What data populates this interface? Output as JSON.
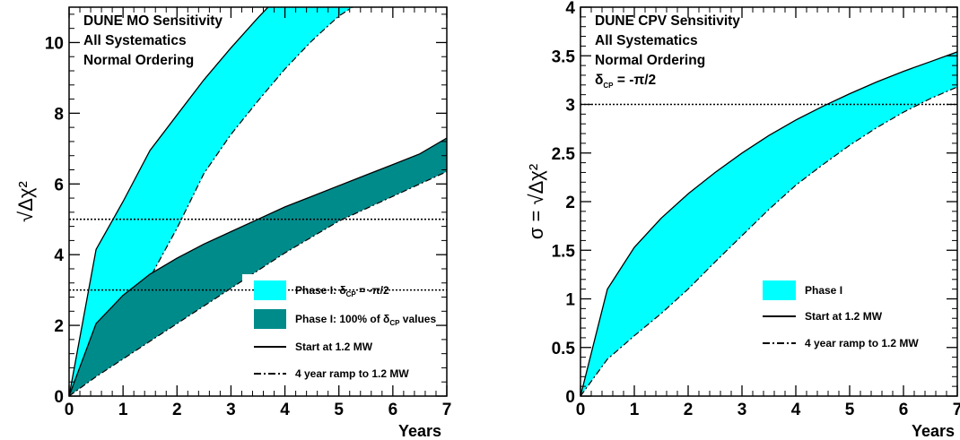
{
  "colors": {
    "phase1_deltacp": "#00ffff",
    "phase1_allcp": "#008b8b",
    "frame": "#000000"
  },
  "chart_data": [
    {
      "type": "area",
      "title_lines": [
        "DUNE MO Sensitivity",
        "All Systematics",
        "Normal Ordering"
      ],
      "xlabel": "Years",
      "ylabel": "√Δχ²",
      "xlim": [
        0,
        7
      ],
      "ylim": [
        0,
        11
      ],
      "x_ticks": [
        0,
        1,
        2,
        3,
        4,
        5,
        6,
        7
      ],
      "y_ticks": [
        0,
        2,
        4,
        6,
        8,
        10
      ],
      "reference_lines": [
        3,
        5
      ],
      "legend_position": "bottom-right",
      "legend": [
        {
          "kind": "box",
          "color_key": "phase1_deltacp",
          "text": "Phase I: δCP = -π/2",
          "main": "Phase I: δ",
          "sub": "CP",
          "rest": " = -π/2"
        },
        {
          "kind": "box",
          "color_key": "phase1_allcp",
          "text": "Phase I: 100% of δCP values",
          "main": "Phase I: 100% of δ",
          "sub": "CP",
          "rest": " values"
        },
        {
          "kind": "solid",
          "text": "Start at 1.2 MW"
        },
        {
          "kind": "dashed",
          "text": "4 year ramp to 1.2 MW"
        }
      ],
      "series": [
        {
          "name": "Phase I: δCP = -π/2",
          "color_key": "phase1_deltacp",
          "start_at_1_2MW": [
            [
              0,
              0
            ],
            [
              0.5,
              4.15
            ],
            [
              1,
              5.5
            ],
            [
              1.5,
              6.95
            ],
            [
              2,
              7.95
            ],
            [
              2.5,
              8.95
            ],
            [
              3,
              9.85
            ],
            [
              3.5,
              10.7
            ],
            [
              3.75,
              11.1
            ]
          ],
          "ramp_to_1_2MW": [
            [
              0,
              0
            ],
            [
              0.5,
              0.85
            ],
            [
              1,
              2.05
            ],
            [
              1.5,
              3.35
            ],
            [
              2,
              4.75
            ],
            [
              2.5,
              6.3
            ],
            [
              3,
              7.4
            ],
            [
              3.5,
              8.35
            ],
            [
              4,
              9.25
            ],
            [
              4.5,
              10.05
            ],
            [
              5,
              10.75
            ],
            [
              5.25,
              11.0
            ]
          ]
        },
        {
          "name": "Phase I: 100% of δCP values",
          "color_key": "phase1_allcp",
          "start_at_1_2MW": [
            [
              0,
              0
            ],
            [
              0.5,
              2.05
            ],
            [
              1,
              2.85
            ],
            [
              1.5,
              3.45
            ],
            [
              2,
              3.9
            ],
            [
              2.5,
              4.3
            ],
            [
              3,
              4.65
            ],
            [
              3.5,
              5.0
            ],
            [
              4,
              5.35
            ],
            [
              4.5,
              5.65
            ],
            [
              5,
              5.95
            ],
            [
              5.5,
              6.25
            ],
            [
              6,
              6.55
            ],
            [
              6.5,
              6.85
            ],
            [
              7,
              7.3
            ]
          ],
          "ramp_to_1_2MW": [
            [
              0,
              0
            ],
            [
              0.5,
              0.55
            ],
            [
              1,
              1.05
            ],
            [
              1.5,
              1.55
            ],
            [
              2,
              2.05
            ],
            [
              2.5,
              2.55
            ],
            [
              3,
              3.05
            ],
            [
              3.5,
              3.55
            ],
            [
              4,
              4.05
            ],
            [
              4.5,
              4.5
            ],
            [
              5,
              4.95
            ],
            [
              5.5,
              5.3
            ],
            [
              6,
              5.65
            ],
            [
              6.5,
              6.0
            ],
            [
              7,
              6.35
            ]
          ]
        }
      ]
    },
    {
      "type": "area",
      "title_lines": [
        "DUNE CPV Sensitivity",
        "All Systematics",
        "Normal Ordering",
        "δCP = -π/2"
      ],
      "title_delta": {
        "main": "δ",
        "sub": "CP",
        "rest": " = -π/2"
      },
      "xlabel": "Years",
      "ylabel": "σ = √Δχ²",
      "xlim": [
        0,
        7
      ],
      "ylim": [
        0,
        4
      ],
      "x_ticks": [
        0,
        1,
        2,
        3,
        4,
        5,
        6,
        7
      ],
      "y_ticks": [
        0,
        0.5,
        1,
        1.5,
        2,
        2.5,
        3,
        3.5,
        4
      ],
      "reference_lines": [
        3
      ],
      "legend_position": "bottom-right",
      "legend": [
        {
          "kind": "box",
          "color_key": "phase1_deltacp",
          "text": "Phase I"
        },
        {
          "kind": "solid",
          "text": "Start at 1.2 MW"
        },
        {
          "kind": "dashed",
          "text": "4 year ramp to 1.2 MW"
        }
      ],
      "series": [
        {
          "name": "Phase I",
          "color_key": "phase1_deltacp",
          "start_at_1_2MW": [
            [
              0,
              0
            ],
            [
              0.5,
              1.1
            ],
            [
              1,
              1.53
            ],
            [
              1.5,
              1.83
            ],
            [
              2,
              2.08
            ],
            [
              2.5,
              2.3
            ],
            [
              3,
              2.5
            ],
            [
              3.5,
              2.68
            ],
            [
              4,
              2.84
            ],
            [
              4.5,
              2.98
            ],
            [
              5,
              3.11
            ],
            [
              5.5,
              3.23
            ],
            [
              6,
              3.34
            ],
            [
              6.5,
              3.44
            ],
            [
              7,
              3.54
            ]
          ],
          "ramp_to_1_2MW": [
            [
              0,
              0
            ],
            [
              0.5,
              0.38
            ],
            [
              1,
              0.62
            ],
            [
              1.5,
              0.85
            ],
            [
              2,
              1.1
            ],
            [
              2.5,
              1.38
            ],
            [
              3,
              1.65
            ],
            [
              3.5,
              1.92
            ],
            [
              4,
              2.17
            ],
            [
              4.5,
              2.38
            ],
            [
              5,
              2.58
            ],
            [
              5.5,
              2.76
            ],
            [
              6,
              2.92
            ],
            [
              6.5,
              3.06
            ],
            [
              7,
              3.18
            ]
          ]
        }
      ]
    }
  ]
}
